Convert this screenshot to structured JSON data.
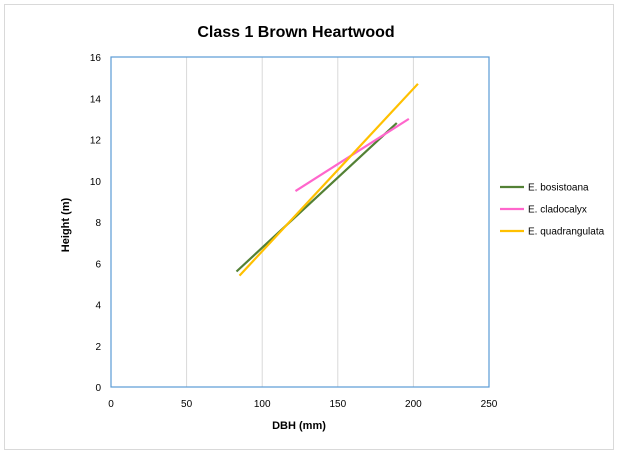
{
  "chart_data": {
    "type": "line",
    "title": "Class 1 Brown Heartwood",
    "xlabel": "DBH (mm)",
    "ylabel": "Height (m)",
    "xlim": [
      0,
      250
    ],
    "ylim": [
      0,
      16
    ],
    "xticks": [
      0,
      50,
      100,
      150,
      200,
      250
    ],
    "yticks": [
      0,
      2,
      4,
      6,
      8,
      10,
      12,
      14,
      16
    ],
    "grid": "vertical",
    "legend_position": "right",
    "series": [
      {
        "name": "E. bosistoana",
        "color": "#538135",
        "x": [
          83,
          189
        ],
        "y": [
          5.6,
          12.8
        ]
      },
      {
        "name": "E. cladocalyx",
        "color": "#ff66cc",
        "x": [
          122,
          197
        ],
        "y": [
          9.5,
          13.0
        ]
      },
      {
        "name": "E. quadrangulata",
        "color": "#ffc000",
        "x": [
          85,
          203
        ],
        "y": [
          5.4,
          14.7
        ]
      }
    ],
    "colors": {
      "plot_border": "#5b9bd5",
      "gridline": "#d9d9d9",
      "axis": "#bfbfbf"
    }
  }
}
